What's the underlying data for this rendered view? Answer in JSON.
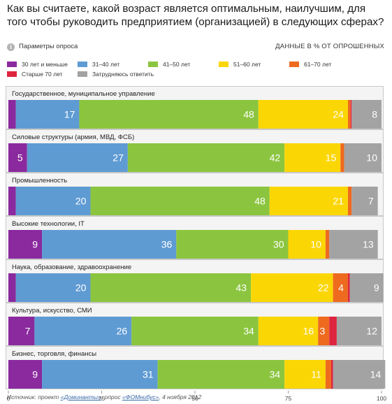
{
  "title": "Как вы считаете, какой возраст является оптимальным, наилучшим, для того чтобы руководить предприятием (организацией) в следующих сферах?",
  "params_label": "Параметры опроса",
  "units_note": "ДАННЫЕ В % ОТ ОПРОШЕННЫХ",
  "source": {
    "prefix": "Источник: проект ",
    "link1": "«Доминанты»",
    "middle": ", опрос ",
    "link2": "«ФОМнибус»",
    "suffix": ", 4 ноября 2012"
  },
  "colors": {
    "30 лет и меньше": "#8a2a9e",
    "31–40 лет": "#5f9bd3",
    "41–50 лет": "#8bc53f",
    "51–60 лет": "#fbd605",
    "61–70 лет": "#ee6a1f",
    "Старше 70 лет": "#de2540",
    "Затрудняюсь ответить": "#a3a3a3",
    "panel_border": "#c8c8c8",
    "panel_bg": "#f4f4f4"
  },
  "chart_data": {
    "type": "bar",
    "orientation": "horizontal",
    "stacked": true,
    "xlim": [
      0,
      100
    ],
    "x_ticks": [
      0,
      25,
      50,
      75,
      100
    ],
    "legend_placement": "top",
    "categories": [
      "Государственное, муниципальное управление",
      "Силовые структуры (армия, МВД, ФСБ)",
      "Промышленность",
      "Высокие технологии, IT",
      "Наука, образование, здравоохранение",
      "Культура, искусство, СМИ",
      "Бизнес, торговля, финансы"
    ],
    "series": [
      {
        "name": "30 лет и меньше",
        "values": [
          2,
          5,
          2,
          9,
          2,
          7,
          9
        ],
        "labels": [
          "",
          "5",
          "",
          "9",
          "",
          "7",
          "9"
        ]
      },
      {
        "name": "31–40 лет",
        "values": [
          17,
          27,
          20,
          36,
          20,
          26,
          31
        ],
        "labels": [
          "17",
          "27",
          "20",
          "36",
          "20",
          "26",
          "31"
        ]
      },
      {
        "name": "41–50 лет",
        "values": [
          48,
          42,
          48,
          30,
          43,
          34,
          34
        ],
        "labels": [
          "48",
          "42",
          "48",
          "30",
          "43",
          "34",
          "34"
        ]
      },
      {
        "name": "51–60 лет",
        "values": [
          24,
          15,
          21,
          10,
          22,
          16,
          11
        ],
        "labels": [
          "24",
          "15",
          "21",
          "10",
          "22",
          "16",
          "11"
        ]
      },
      {
        "name": "61–70 лет",
        "values": [
          0.7,
          1,
          1,
          1,
          4,
          3,
          1.5
        ],
        "labels": [
          "",
          "",
          "",
          "",
          "4",
          "3",
          ""
        ]
      },
      {
        "name": "Старше 70 лет",
        "values": [
          0.3,
          0,
          0,
          0,
          0.5,
          2,
          0.5
        ],
        "labels": [
          "",
          "",
          "",
          "",
          "",
          "",
          ""
        ]
      },
      {
        "name": "Затрудняюсь ответить",
        "values": [
          8,
          10,
          7,
          13,
          9,
          12,
          14
        ],
        "labels": [
          "8",
          "10",
          "7",
          "13",
          "9",
          "12",
          "14"
        ]
      }
    ]
  }
}
